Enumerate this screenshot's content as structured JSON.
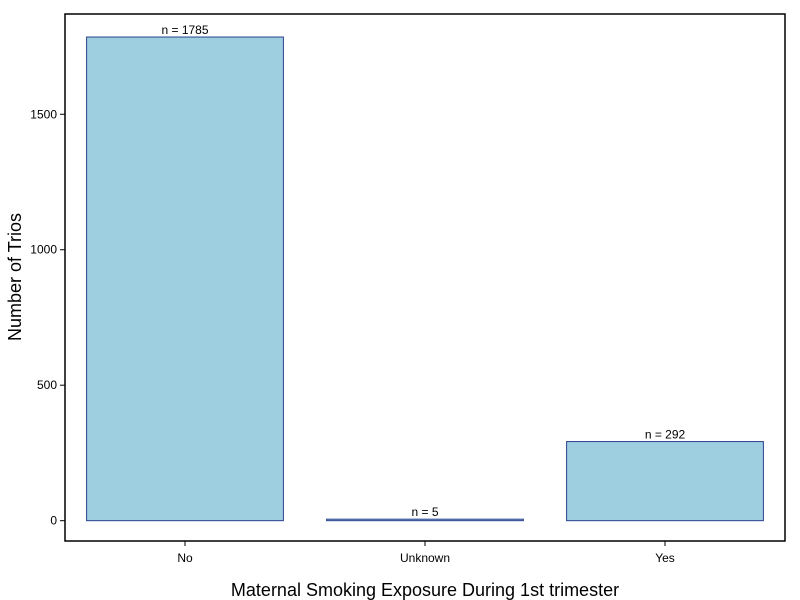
{
  "chart_data": {
    "type": "bar",
    "title": "",
    "xlabel": "Maternal Smoking Exposure During 1st trimester",
    "ylabel": "Number of Trios",
    "categories": [
      "No",
      "Unknown",
      "Yes"
    ],
    "values": [
      1785,
      5,
      292
    ],
    "data_labels": [
      "n =  1785",
      "n =  5",
      "n =  292"
    ],
    "ylim": [
      -75,
      1870
    ],
    "y_ticks": [
      0,
      500,
      1000,
      1500
    ],
    "y_tick_labels": [
      "0",
      "500",
      "1000",
      "1500"
    ],
    "grid": false,
    "legend": "none",
    "colors": {
      "bar_fill": "#9ecfe0",
      "bar_stroke": "#2b3f8f",
      "frame": "#000000"
    }
  }
}
